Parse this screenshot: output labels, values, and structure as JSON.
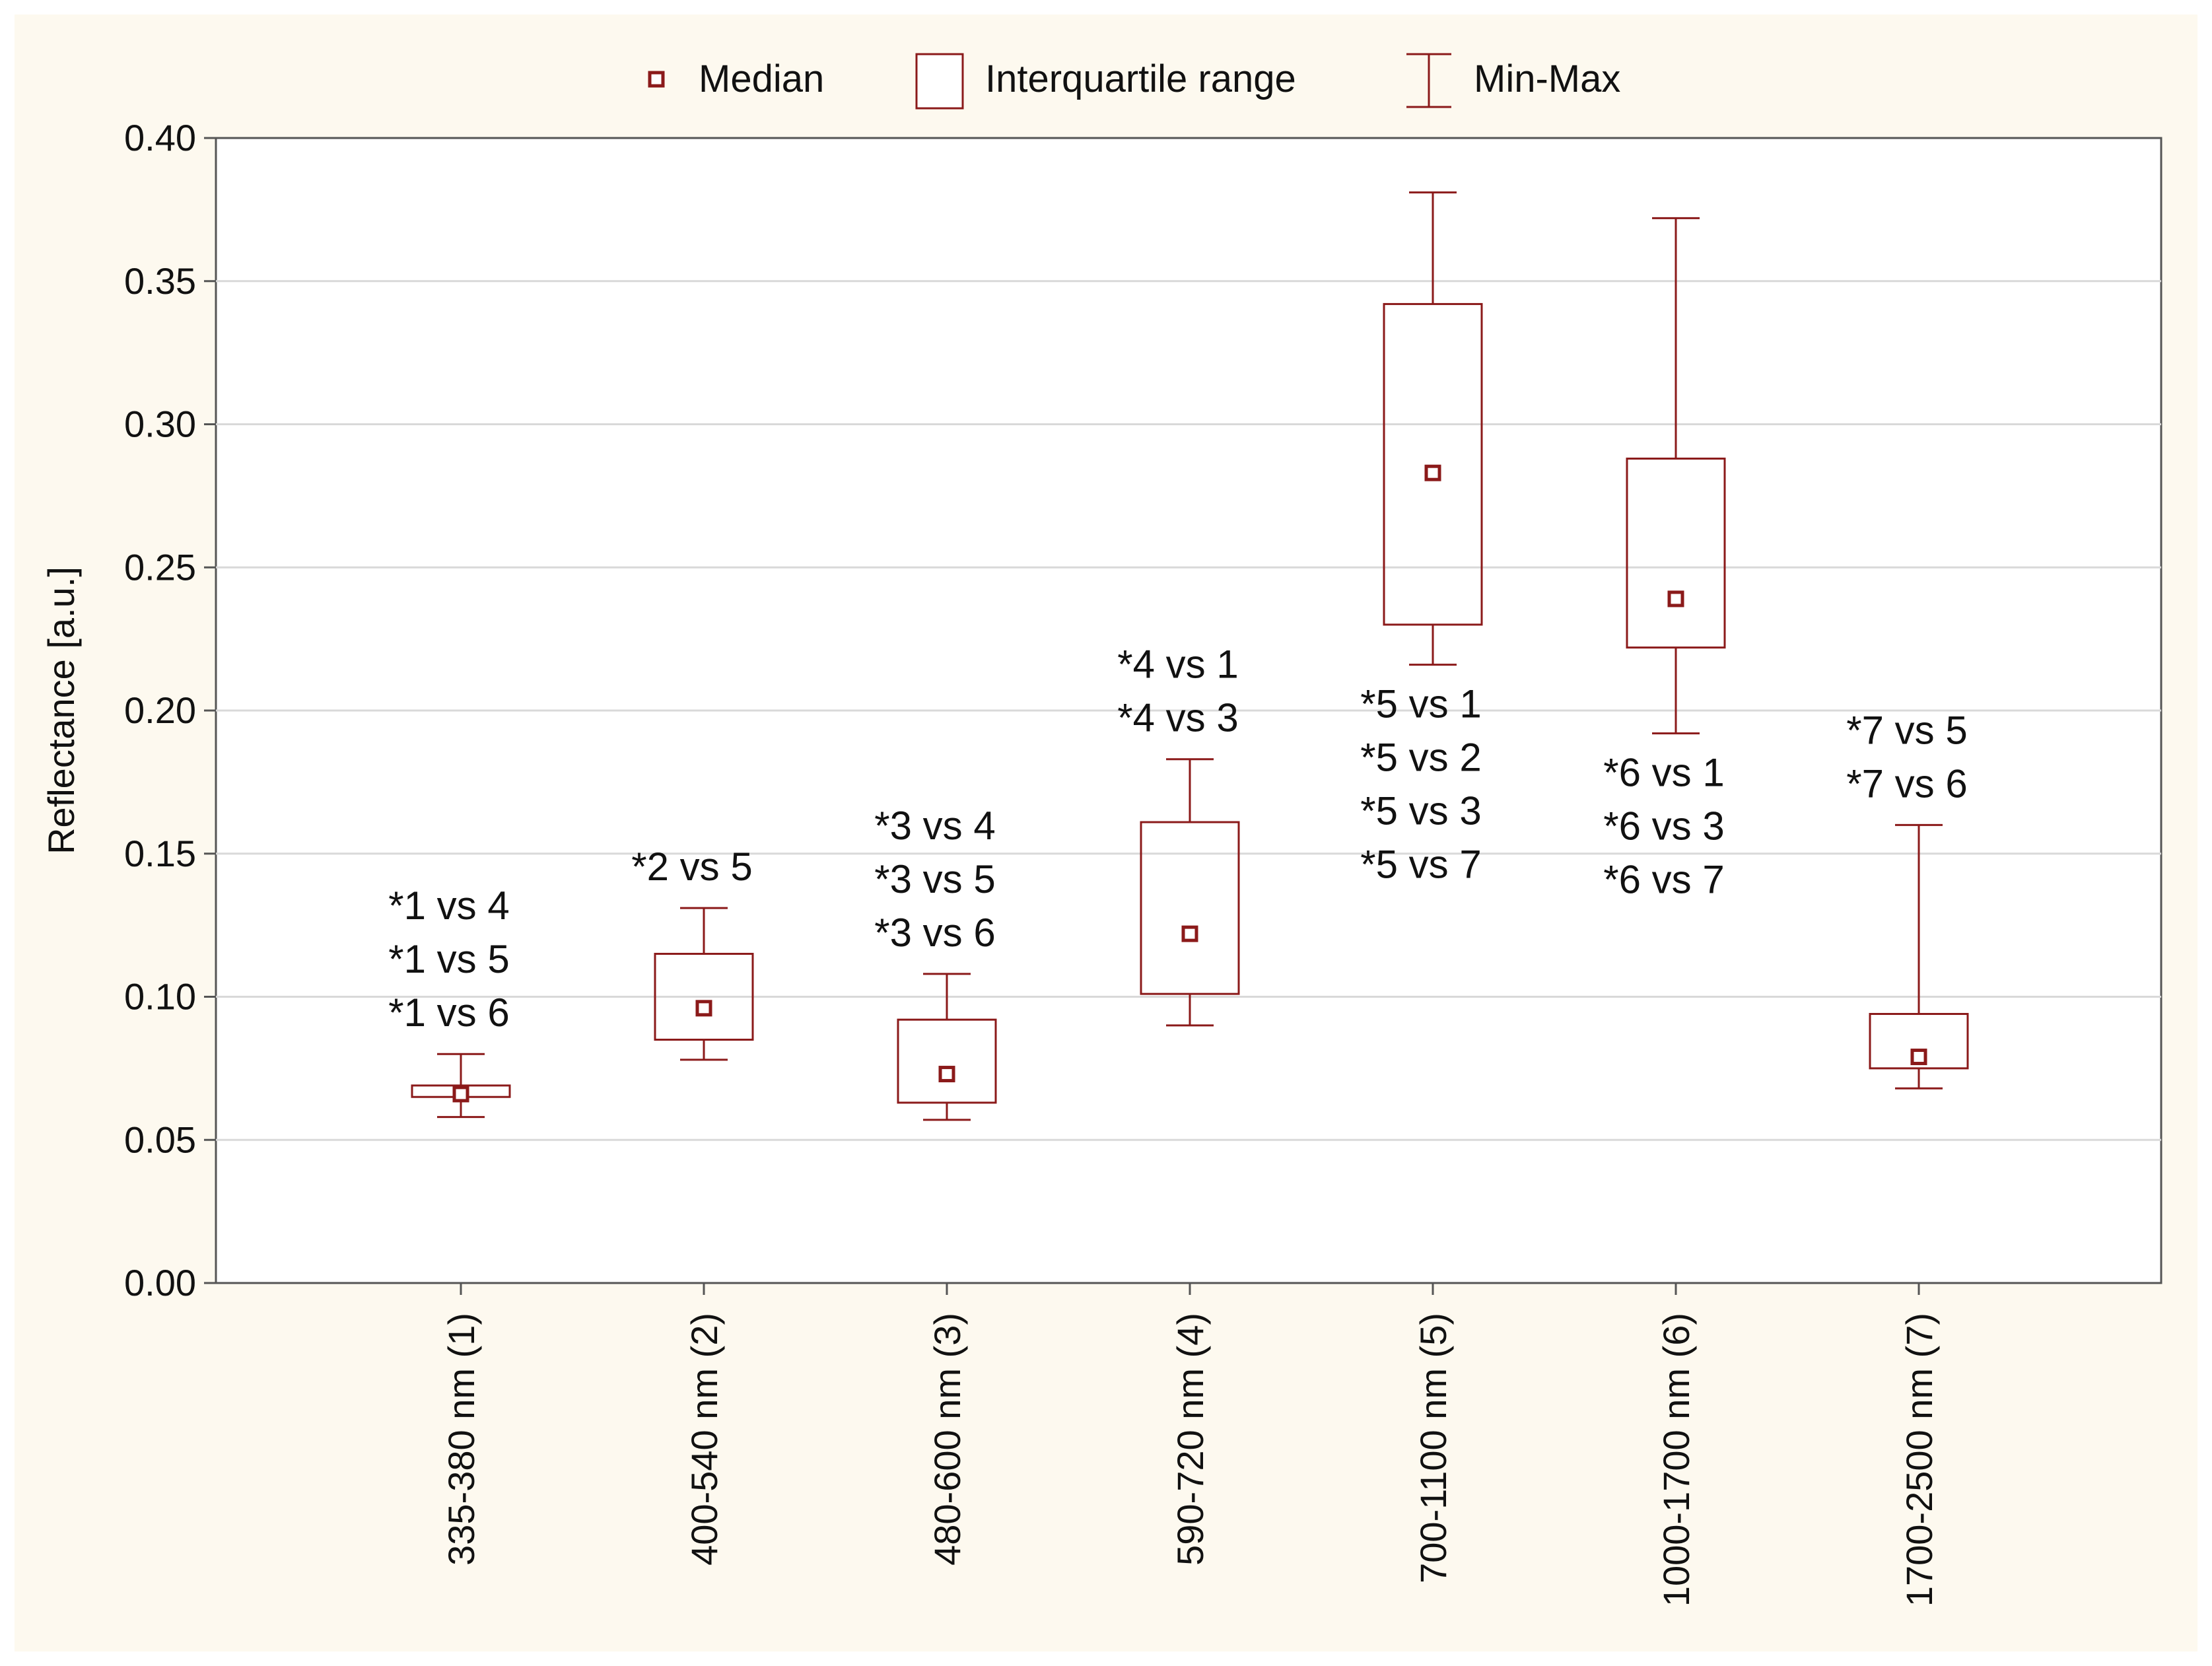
{
  "chart_data": {
    "type": "box",
    "title": "",
    "xlabel": "",
    "ylabel": "Reflectance [a.u.]",
    "ylim": [
      0,
      0.4
    ],
    "yticks": [
      "0.00",
      "0.05",
      "0.10",
      "0.15",
      "0.20",
      "0.25",
      "0.30",
      "0.35",
      "0.40"
    ],
    "grid": true,
    "legend_position": "top-center",
    "legend": [
      {
        "name": "Median"
      },
      {
        "name": "Interquartile range"
      },
      {
        "name": "Min-Max"
      }
    ],
    "categories": [
      "335-380 nm (1)",
      "400-540 nm (2)",
      "480-600 nm (3)",
      "590-720 nm (4)",
      "700-1100 nm (5)",
      "1000-1700 nm (6)",
      "1700-2500 nm (7)"
    ],
    "series": [
      {
        "name": "335-380 nm (1)",
        "min": 0.058,
        "q1": 0.065,
        "median": 0.066,
        "q3": 0.069,
        "max": 0.08
      },
      {
        "name": "400-540 nm (2)",
        "min": 0.078,
        "q1": 0.085,
        "median": 0.096,
        "q3": 0.115,
        "max": 0.131
      },
      {
        "name": "480-600 nm (3)",
        "min": 0.057,
        "q1": 0.063,
        "median": 0.073,
        "q3": 0.092,
        "max": 0.108
      },
      {
        "name": "590-720 nm (4)",
        "min": 0.09,
        "q1": 0.101,
        "median": 0.122,
        "q3": 0.161,
        "max": 0.183
      },
      {
        "name": "700-1100 nm (5)",
        "min": 0.216,
        "q1": 0.23,
        "median": 0.283,
        "q3": 0.342,
        "max": 0.381
      },
      {
        "name": "1000-1700 nm (6)",
        "min": 0.192,
        "q1": 0.222,
        "median": 0.239,
        "q3": 0.288,
        "max": 0.372
      },
      {
        "name": "1700-2500 nm (7)",
        "min": 0.068,
        "q1": 0.075,
        "median": 0.079,
        "q3": 0.094,
        "max": 0.16
      }
    ],
    "annotations": [
      {
        "category": 0,
        "position": "above",
        "lines": [
          "*1 vs 4",
          "*1 vs 5",
          "*1 vs 6"
        ]
      },
      {
        "category": 1,
        "position": "above",
        "lines": [
          "*2 vs 5"
        ]
      },
      {
        "category": 2,
        "position": "above",
        "lines": [
          "*3 vs 4",
          "*3 vs 5",
          "*3 vs 6"
        ]
      },
      {
        "category": 3,
        "position": "above",
        "lines": [
          "*4 vs 1",
          "*4 vs 3"
        ]
      },
      {
        "category": 4,
        "position": "below",
        "lines": [
          "*5 vs 1",
          "*5 vs 2",
          "*5 vs 3",
          "*5 vs 7"
        ]
      },
      {
        "category": 5,
        "position": "below",
        "lines": [
          "*6 vs 1",
          "*6 vs 3",
          "*6 vs 7"
        ]
      },
      {
        "category": 6,
        "position": "above",
        "lines": [
          "*7 vs 5",
          "*7 vs 6"
        ]
      }
    ],
    "colors": {
      "box": "#8b1a1a",
      "grid": "#d9d9d9",
      "axis": "#555555",
      "background": "#fdf9ef",
      "plot_background": "#ffffff"
    }
  }
}
